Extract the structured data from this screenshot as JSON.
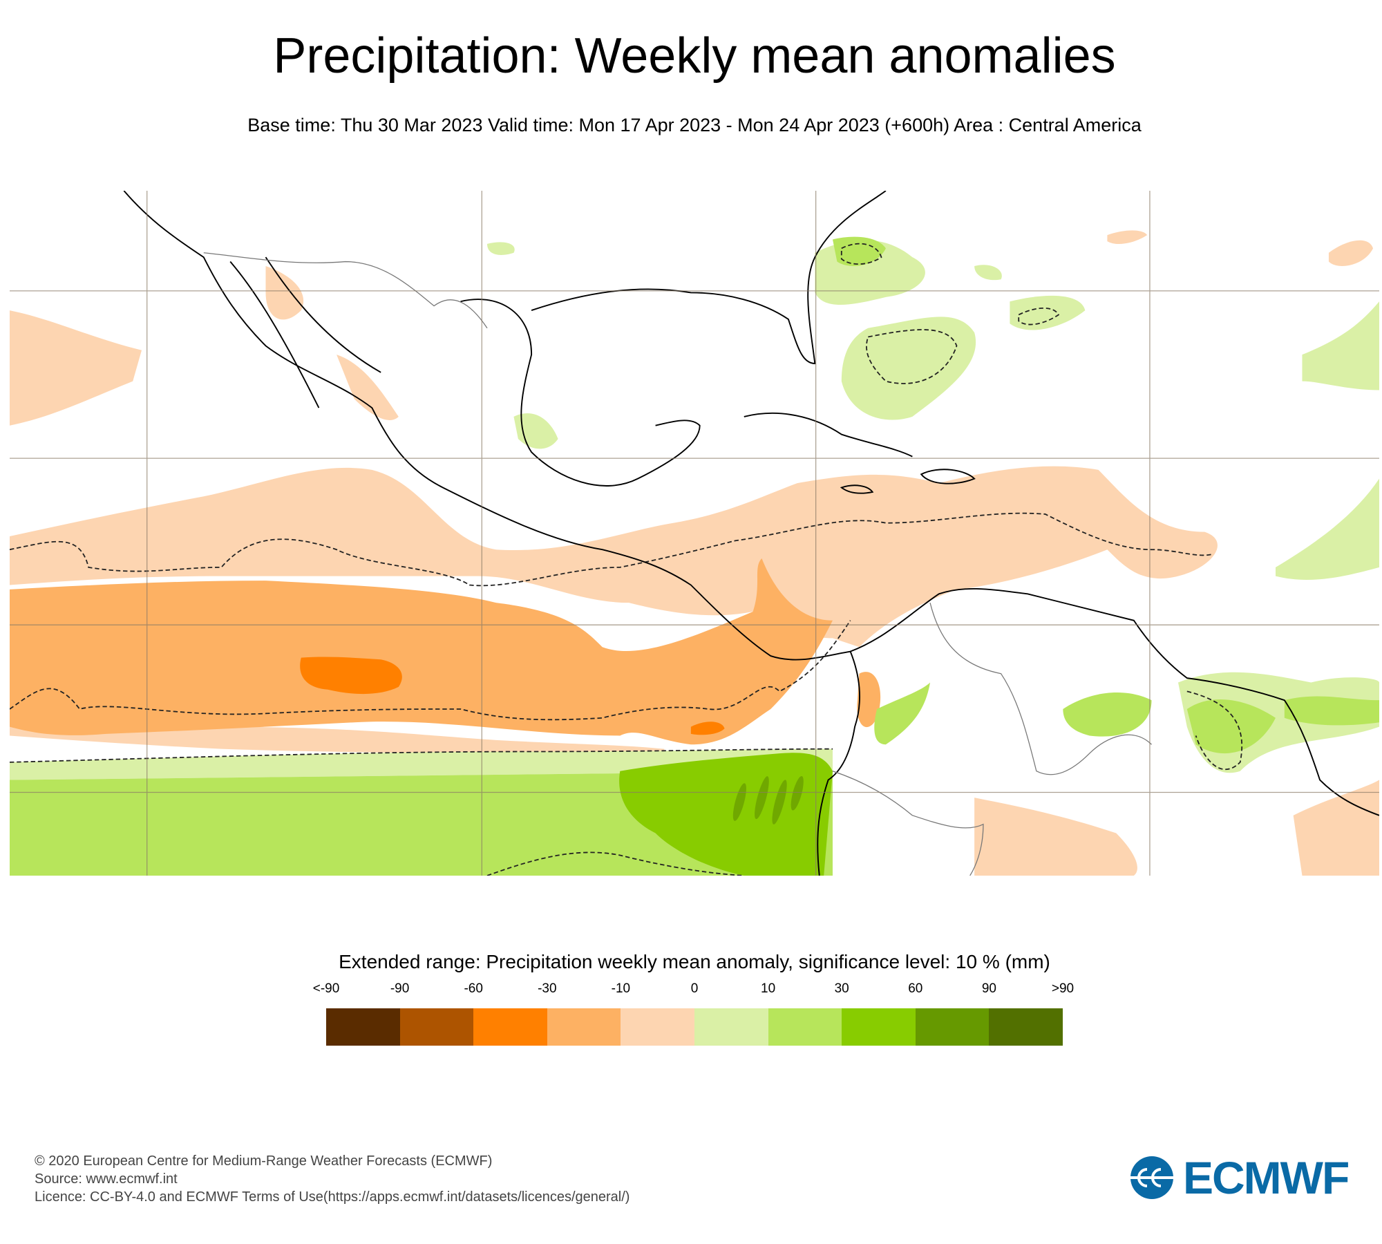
{
  "header": {
    "title": "Precipitation: Weekly mean anomalies",
    "subtitle": "Base time: Thu 30 Mar 2023 Valid time: Mon 17 Apr 2023 - Mon 24 Apr 2023 (+600h) Area : Central America"
  },
  "legend": {
    "title": "Extended range: Precipitation weekly mean anomaly, significance level: 10 % (mm)",
    "labels": [
      "<-90",
      "-90",
      "-60",
      "-30",
      "-10",
      "0",
      "10",
      "30",
      "60",
      "90",
      ">90"
    ],
    "colors": [
      "#5a2c00",
      "#ad5400",
      "#ff8000",
      "#fdb163",
      "#fdd5b1",
      "#daf0a6",
      "#b7e55b",
      "#88cc00",
      "#669900",
      "#527000"
    ]
  },
  "footer": {
    "copyright": "© 2020 European Centre for Medium-Range Weather Forecasts (ECMWF)",
    "source": "Source: www.ecmwf.int",
    "licence": "Licence: CC-BY-4.0 and ECMWF Terms of Use(https://apps.ecmwf.int/datasets/licences/general/)"
  },
  "logo": {
    "text": "ECMWF",
    "color": "#0a6aa6"
  }
}
